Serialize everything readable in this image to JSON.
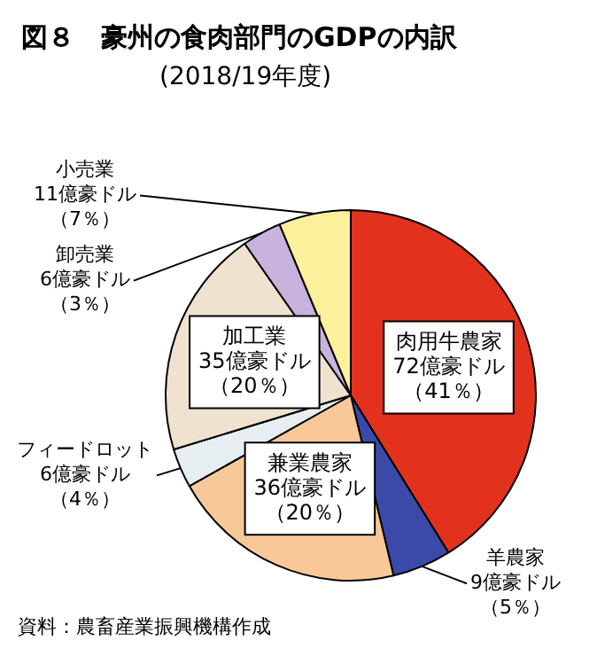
{
  "chart_data": {
    "type": "pie",
    "title": "図８　豪州の食肉部門のGDPの内訳",
    "subtitle": "(2018/19年度)",
    "categories": [
      "肉用牛農家",
      "羊農家",
      "兼業農家",
      "フィードロット",
      "加工業",
      "卸売業",
      "小売業"
    ],
    "values": [
      72,
      9,
      36,
      6,
      35,
      6,
      11
    ],
    "colors": [
      "#e2311d",
      "#3b4aa8",
      "#f8c898",
      "#e6eef2",
      "#efe2cf",
      "#c7b3de",
      "#fbf09c"
    ],
    "value_labels": [
      "72億豪ドル（41％）",
      "9億豪ドル（5％）",
      "36億豪ドル（20％）",
      "6億豪ドル（4％）",
      "35億豪ドル（20％）",
      "6億豪ドル（3％）",
      "11億豪ドル（7％）"
    ],
    "annotations": [
      "資料：農畜産業振興機構作成"
    ]
  }
}
